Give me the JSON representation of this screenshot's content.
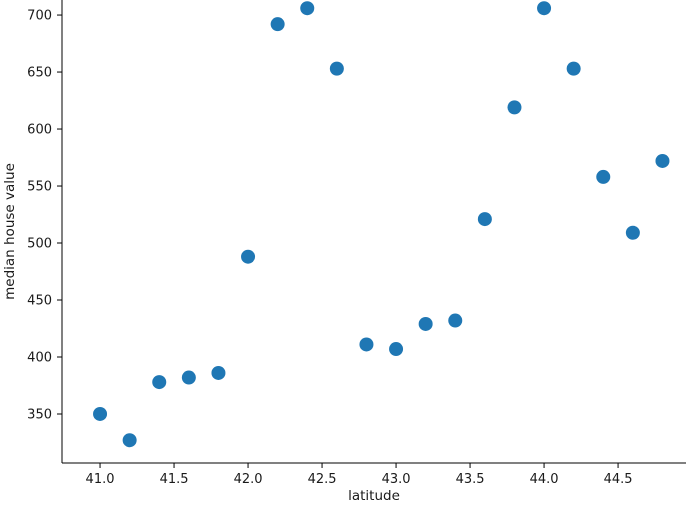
{
  "figure": {
    "background": "#ffffff",
    "axis_color": "#000000",
    "text_color": "#1a1a1a"
  },
  "chart_data": {
    "type": "scatter",
    "title": "",
    "xlabel": "latitude",
    "ylabel": "median house value",
    "x": [
      41.0,
      41.2,
      41.4,
      41.6,
      41.8,
      42.0,
      42.2,
      42.4,
      42.6,
      42.8,
      43.0,
      43.2,
      43.4,
      43.6,
      43.8,
      44.0,
      44.2,
      44.4,
      44.6,
      44.8
    ],
    "y": [
      350,
      327,
      378,
      382,
      386,
      488,
      692,
      706,
      653,
      411,
      407,
      429,
      432,
      521,
      619,
      706,
      653,
      558,
      509,
      572
    ],
    "xticks": {
      "values": [
        41.0,
        41.5,
        42.0,
        42.5,
        43.0,
        43.5,
        44.0,
        44.5
      ],
      "labels": [
        "41.0",
        "41.5",
        "42.0",
        "42.5",
        "43.0",
        "43.5",
        "44.0",
        "44.5"
      ]
    },
    "yticks": {
      "values": [
        350,
        400,
        450,
        500,
        550,
        600,
        650,
        700
      ],
      "labels": [
        "350",
        "400",
        "450",
        "500",
        "550",
        "600",
        "650",
        "700"
      ]
    },
    "xlim": [
      40.743,
      44.959
    ],
    "ylim": [
      307.0,
      713.2
    ],
    "marker": {
      "color": "#1f77b4",
      "radius_px": 7
    },
    "grid": false,
    "legend": null
  }
}
